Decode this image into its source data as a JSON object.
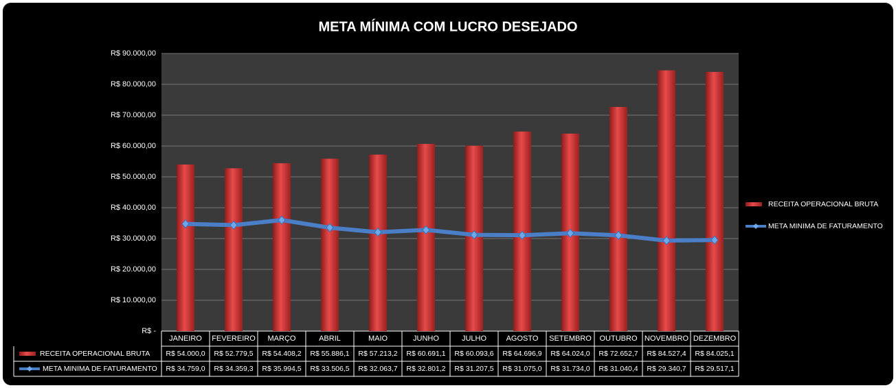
{
  "chart_data": {
    "type": "bar-line",
    "title": "META MÍNIMA COM LUCRO DESEJADO",
    "categories": [
      "JANEIRO",
      "FEVEREIRO",
      "MARÇO",
      "ABRIL",
      "MAIO",
      "JUNHO",
      "JULHO",
      "AGOSTO",
      "SETEMBRO",
      "OUTUBRO",
      "NOVEMBRO",
      "DEZEMBRO"
    ],
    "series": [
      {
        "name": "RECEITA OPERACIONAL BRUTA",
        "type": "bar",
        "color": "#d63a3a",
        "values": [
          54000.0,
          52779.5,
          54408.2,
          55886.1,
          57213.2,
          60691.1,
          60093.6,
          64696.9,
          64024.0,
          72652.7,
          84527.4,
          84025.1
        ],
        "value_labels": [
          "R$ 54.000,0",
          "R$ 52.779,5",
          "R$ 54.408,2",
          "R$ 55.886,1",
          "R$ 57.213,2",
          "R$ 60.691,1",
          "R$ 60.093,6",
          "R$ 64.696,9",
          "R$ 64.024,0",
          "R$ 72.652,7",
          "R$ 84.527,4",
          "R$ 84.025,1"
        ]
      },
      {
        "name": "META MINIMA DE FATURAMENTO",
        "type": "line",
        "color": "#4a7fc8",
        "values": [
          34759.0,
          34359.3,
          35994.5,
          33506.5,
          32063.7,
          32801.2,
          31207.5,
          31075.0,
          31734.0,
          31040.4,
          29340.7,
          29517.1
        ],
        "value_labels": [
          "R$ 34.759,0",
          "R$ 34.359,3",
          "R$ 35.994,5",
          "R$ 33.506,5",
          "R$ 32.063,7",
          "R$ 32.801,2",
          "R$ 31.207,5",
          "R$ 31.075,0",
          "R$ 31.734,0",
          "R$ 31.040,4",
          "R$ 29.340,7",
          "R$ 29.517,1"
        ]
      }
    ],
    "ylim": [
      0,
      90000
    ],
    "yticks": [
      {
        "value": 0,
        "label": "R$ -"
      },
      {
        "value": 10000,
        "label": "R$ 10.000,00"
      },
      {
        "value": 20000,
        "label": "R$ 20.000,00"
      },
      {
        "value": 30000,
        "label": "R$ 30.000,00"
      },
      {
        "value": 40000,
        "label": "R$ 40.000,00"
      },
      {
        "value": 50000,
        "label": "R$ 50.000,00"
      },
      {
        "value": 60000,
        "label": "R$ 60.000,00"
      },
      {
        "value": 70000,
        "label": "R$ 70.000,00"
      },
      {
        "value": 80000,
        "label": "R$ 80.000,00"
      },
      {
        "value": 90000,
        "label": "R$ 90.000,00"
      }
    ],
    "grid": true,
    "legend": "right"
  }
}
